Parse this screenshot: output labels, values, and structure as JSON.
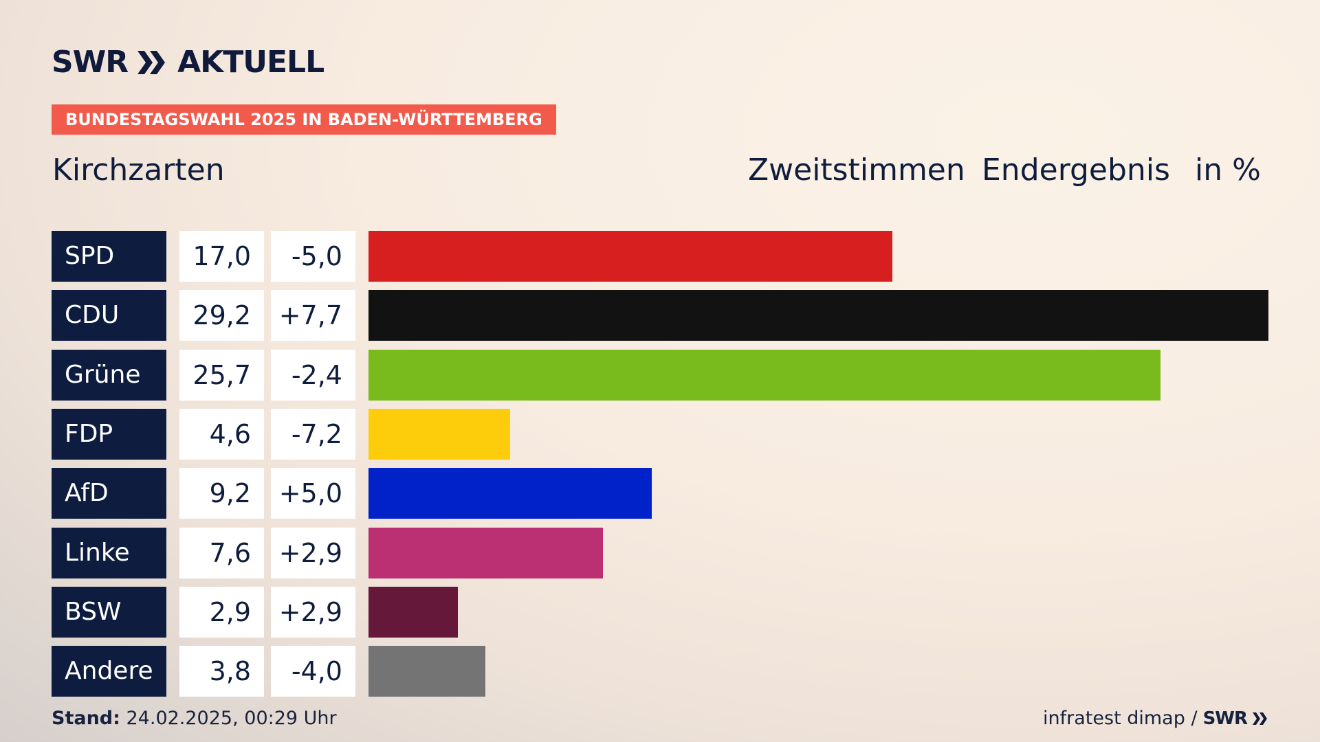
{
  "brand": {
    "name": "SWR",
    "suffix": "AKTUELL"
  },
  "tagline": "BUNDESTAGSWAHL 2025 IN BADEN-WÜRTTEMBERG",
  "location": "Kirchzarten",
  "header": {
    "type": "Zweitstimmen",
    "status": "Endergebnis",
    "unit": "in %"
  },
  "footer": {
    "stand_label": "Stand:",
    "stand_value": " 24.02.2025, 00:29 Uhr",
    "source": "infratest dimap /",
    "source_brand": "SWR"
  },
  "chart_data": {
    "type": "bar",
    "categories": [
      "SPD",
      "CDU",
      "Grüne",
      "FDP",
      "AfD",
      "Linke",
      "BSW",
      "Andere"
    ],
    "values": [
      17.0,
      29.2,
      25.7,
      4.6,
      9.2,
      7.6,
      2.9,
      3.8
    ],
    "labels": [
      "17,0",
      "29,2",
      "25,7",
      "4,6",
      "9,2",
      "7,6",
      "2,9",
      "3,8"
    ],
    "diff_labels": [
      "-5,0",
      "+7,7",
      "-2,4",
      "-7,2",
      "+5,0",
      "+2,9",
      "+2,9",
      "-4,0"
    ],
    "colors": [
      "#d81f20",
      "#121212",
      "#79bb1c",
      "#fdcd0c",
      "#0022c8",
      "#bb2f73",
      "#66183b",
      "#747474"
    ],
    "orientation": "horizontal",
    "xlim": [
      0,
      29.2
    ]
  }
}
